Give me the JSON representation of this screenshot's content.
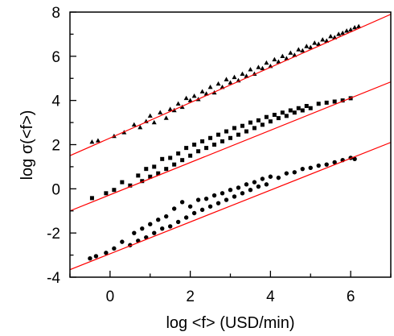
{
  "chart_data": {
    "type": "scatter",
    "title": "",
    "xlabel": "log <f> (USD/min)",
    "ylabel": "log σ(<f>)",
    "xlim": [
      -1,
      7
    ],
    "ylim": [
      -4,
      8
    ],
    "xticks": [
      0,
      2,
      4,
      6
    ],
    "yticks": [
      -4,
      -2,
      0,
      2,
      4,
      6,
      8
    ],
    "grid": false,
    "legend": "none",
    "marker_color": "#000000",
    "fit_line_color": "#ff0000",
    "series": [
      {
        "marker": "triangle",
        "x_range": [
          -0.5,
          6.2
        ],
        "fit": {
          "slope": 0.8,
          "intercept": 2.3
        },
        "points": [
          [
            -0.45,
            2.12
          ],
          [
            -0.3,
            2.18
          ],
          [
            0.1,
            2.38
          ],
          [
            0.35,
            2.55
          ],
          [
            0.6,
            2.9
          ],
          [
            0.75,
            2.78
          ],
          [
            0.9,
            3.05
          ],
          [
            1.0,
            3.3
          ],
          [
            1.1,
            3.0
          ],
          [
            1.25,
            3.45
          ],
          [
            1.4,
            3.2
          ],
          [
            1.5,
            3.6
          ],
          [
            1.6,
            3.55
          ],
          [
            1.7,
            3.85
          ],
          [
            1.8,
            3.7
          ],
          [
            1.9,
            4.1
          ],
          [
            2.0,
            4.0
          ],
          [
            2.1,
            4.2
          ],
          [
            2.2,
            4.05
          ],
          [
            2.3,
            4.4
          ],
          [
            2.4,
            4.3
          ],
          [
            2.5,
            4.6
          ],
          [
            2.6,
            4.35
          ],
          [
            2.7,
            4.75
          ],
          [
            2.8,
            4.6
          ],
          [
            2.9,
            4.95
          ],
          [
            3.0,
            4.8
          ],
          [
            3.1,
            5.05
          ],
          [
            3.2,
            4.9
          ],
          [
            3.3,
            5.2
          ],
          [
            3.4,
            5.1
          ],
          [
            3.5,
            5.4
          ],
          [
            3.6,
            5.2
          ],
          [
            3.7,
            5.5
          ],
          [
            3.8,
            5.45
          ],
          [
            3.9,
            5.7
          ],
          [
            4.0,
            5.55
          ],
          [
            4.1,
            5.85
          ],
          [
            4.2,
            5.75
          ],
          [
            4.3,
            6.0
          ],
          [
            4.4,
            5.9
          ],
          [
            4.5,
            6.15
          ],
          [
            4.6,
            6.05
          ],
          [
            4.7,
            6.3
          ],
          [
            4.8,
            6.25
          ],
          [
            4.9,
            6.45
          ],
          [
            5.0,
            6.4
          ],
          [
            5.1,
            6.6
          ],
          [
            5.2,
            6.55
          ],
          [
            5.3,
            6.75
          ],
          [
            5.4,
            6.7
          ],
          [
            5.5,
            6.9
          ],
          [
            5.6,
            6.85
          ],
          [
            5.7,
            7.0
          ],
          [
            5.8,
            7.05
          ],
          [
            5.9,
            7.15
          ],
          [
            6.0,
            7.2
          ],
          [
            6.1,
            7.3
          ],
          [
            6.2,
            7.35
          ]
        ]
      },
      {
        "marker": "square",
        "x_range": [
          -0.5,
          6.1
        ],
        "fit": {
          "slope": 0.73,
          "intercept": -0.27
        },
        "points": [
          [
            -0.45,
            -0.42
          ],
          [
            -0.1,
            -0.2
          ],
          [
            0.1,
            -0.05
          ],
          [
            0.3,
            0.3
          ],
          [
            0.5,
            0.15
          ],
          [
            0.7,
            0.6
          ],
          [
            0.8,
            0.35
          ],
          [
            0.9,
            0.9
          ],
          [
            1.0,
            0.55
          ],
          [
            1.1,
            1.0
          ],
          [
            1.2,
            0.7
          ],
          [
            1.3,
            1.35
          ],
          [
            1.4,
            0.9
          ],
          [
            1.5,
            1.4
          ],
          [
            1.6,
            1.1
          ],
          [
            1.7,
            1.6
          ],
          [
            1.8,
            1.3
          ],
          [
            1.9,
            1.85
          ],
          [
            2.0,
            1.5
          ],
          [
            2.1,
            2.0
          ],
          [
            2.2,
            1.7
          ],
          [
            2.3,
            2.15
          ],
          [
            2.4,
            1.85
          ],
          [
            2.5,
            2.3
          ],
          [
            2.6,
            2.0
          ],
          [
            2.7,
            2.45
          ],
          [
            2.8,
            2.15
          ],
          [
            2.9,
            2.6
          ],
          [
            3.0,
            2.3
          ],
          [
            3.1,
            2.75
          ],
          [
            3.2,
            2.45
          ],
          [
            3.3,
            2.85
          ],
          [
            3.4,
            2.6
          ],
          [
            3.5,
            3.0
          ],
          [
            3.6,
            2.75
          ],
          [
            3.7,
            3.1
          ],
          [
            3.8,
            2.9
          ],
          [
            3.9,
            3.25
          ],
          [
            4.0,
            3.05
          ],
          [
            4.1,
            3.35
          ],
          [
            4.2,
            3.2
          ],
          [
            4.3,
            3.45
          ],
          [
            4.4,
            3.3
          ],
          [
            4.5,
            3.55
          ],
          [
            4.6,
            3.45
          ],
          [
            4.7,
            3.65
          ],
          [
            4.8,
            3.55
          ],
          [
            4.9,
            3.75
          ],
          [
            5.0,
            3.65
          ],
          [
            5.2,
            3.85
          ],
          [
            5.4,
            3.9
          ],
          [
            5.6,
            3.95
          ],
          [
            5.8,
            4.0
          ],
          [
            6.0,
            4.1
          ]
        ]
      },
      {
        "marker": "circle",
        "x_range": [
          -0.5,
          6.1
        ],
        "fit": {
          "slope": 0.72,
          "intercept": -2.94
        },
        "points": [
          [
            -0.5,
            -3.15
          ],
          [
            -0.35,
            -3.05
          ],
          [
            -0.1,
            -2.9
          ],
          [
            0.1,
            -2.7
          ],
          [
            0.3,
            -2.4
          ],
          [
            0.5,
            -2.55
          ],
          [
            0.6,
            -2.0
          ],
          [
            0.7,
            -2.35
          ],
          [
            0.8,
            -1.8
          ],
          [
            0.9,
            -2.2
          ],
          [
            1.0,
            -1.6
          ],
          [
            1.1,
            -2.0
          ],
          [
            1.2,
            -1.4
          ],
          [
            1.3,
            -1.8
          ],
          [
            1.4,
            -1.25
          ],
          [
            1.5,
            -1.7
          ],
          [
            1.6,
            -0.9
          ],
          [
            1.7,
            -1.5
          ],
          [
            1.8,
            -0.6
          ],
          [
            1.9,
            -1.3
          ],
          [
            2.0,
            -0.8
          ],
          [
            2.1,
            -1.1
          ],
          [
            2.2,
            -0.5
          ],
          [
            2.3,
            -0.95
          ],
          [
            2.4,
            -0.45
          ],
          [
            2.5,
            -0.8
          ],
          [
            2.6,
            -0.3
          ],
          [
            2.7,
            -0.65
          ],
          [
            2.8,
            -0.2
          ],
          [
            2.9,
            -0.5
          ],
          [
            3.0,
            -0.05
          ],
          [
            3.1,
            -0.35
          ],
          [
            3.2,
            0.05
          ],
          [
            3.3,
            -0.2
          ],
          [
            3.4,
            0.2
          ],
          [
            3.5,
            -0.05
          ],
          [
            3.6,
            0.3
          ],
          [
            3.7,
            0.1
          ],
          [
            3.8,
            0.45
          ],
          [
            3.9,
            0.2
          ],
          [
            4.0,
            0.55
          ],
          [
            4.2,
            0.5
          ],
          [
            4.4,
            0.7
          ],
          [
            4.6,
            0.75
          ],
          [
            4.8,
            0.9
          ],
          [
            5.0,
            0.95
          ],
          [
            5.2,
            1.05
          ],
          [
            5.4,
            1.1
          ],
          [
            5.6,
            1.2
          ],
          [
            5.8,
            1.3
          ],
          [
            6.0,
            1.4
          ],
          [
            6.1,
            1.35
          ]
        ]
      }
    ]
  }
}
